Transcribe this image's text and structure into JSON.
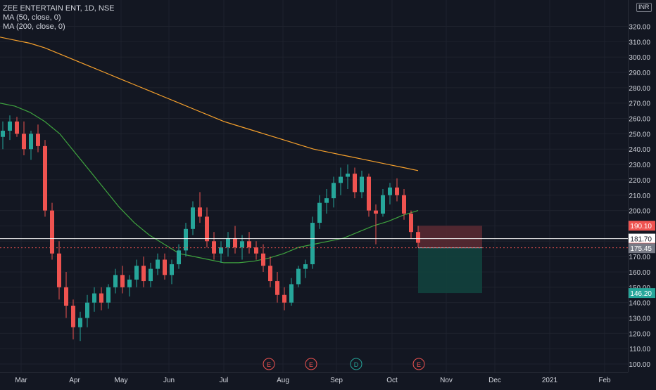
{
  "header": {
    "symbol_line": "ZEE ENTERTAIN ENT, 1D, NSE",
    "ma50_line": "MA (50, close, 0)",
    "ma200_line": "MA (200, close, 0)",
    "currency": "INR"
  },
  "colors": {
    "background": "#131722",
    "grid": "#1e222d",
    "up": "#26a69a",
    "down": "#ef5350",
    "ma50": "#3fa43f",
    "ma200": "#f7a12c",
    "axis_text": "#d1d4dc",
    "stop_zone": "#5c2a33",
    "target_zone": "#12413d"
  },
  "chart_data": {
    "type": "candlestick",
    "symbol": "ZEE ENTERTAIN ENT",
    "interval": "1D",
    "exchange": "NSE",
    "y_ticks": [
      100,
      110,
      120,
      130,
      140,
      150,
      160,
      170,
      180,
      190,
      200,
      210,
      220,
      230,
      240,
      250,
      260,
      270,
      280,
      290,
      300,
      310,
      320
    ],
    "y_tick_labels": [
      "100.00",
      "110.00",
      "120.00",
      "130.00",
      "140.00",
      "150.00",
      "160.00",
      "170.00",
      "180.00",
      "190.00",
      "200.00",
      "210.00",
      "220.00",
      "230.00",
      "240.00",
      "250.00",
      "260.00",
      "270.00",
      "280.00",
      "290.00",
      "300.00",
      "310.00",
      "320.00"
    ],
    "x_labels": [
      "Mar",
      "Apr",
      "May",
      "Jun",
      "Jul",
      "Aug",
      "Sep",
      "Oct",
      "Nov",
      "Dec",
      "2021",
      "Feb"
    ],
    "ohlc_points": [
      {
        "o": 248,
        "h": 258,
        "l": 240,
        "c": 252
      },
      {
        "o": 252,
        "h": 262,
        "l": 246,
        "c": 258
      },
      {
        "o": 258,
        "h": 261,
        "l": 248,
        "c": 250
      },
      {
        "o": 250,
        "h": 258,
        "l": 236,
        "c": 240
      },
      {
        "o": 240,
        "h": 252,
        "l": 233,
        "c": 250
      },
      {
        "o": 250,
        "h": 256,
        "l": 238,
        "c": 242
      },
      {
        "o": 242,
        "h": 246,
        "l": 196,
        "c": 200
      },
      {
        "o": 200,
        "h": 205,
        "l": 168,
        "c": 172
      },
      {
        "o": 172,
        "h": 180,
        "l": 142,
        "c": 150
      },
      {
        "o": 150,
        "h": 160,
        "l": 130,
        "c": 138
      },
      {
        "o": 138,
        "h": 142,
        "l": 116,
        "c": 124
      },
      {
        "o": 124,
        "h": 134,
        "l": 115,
        "c": 130
      },
      {
        "o": 130,
        "h": 145,
        "l": 124,
        "c": 140
      },
      {
        "o": 140,
        "h": 150,
        "l": 134,
        "c": 146
      },
      {
        "o": 146,
        "h": 150,
        "l": 135,
        "c": 140
      },
      {
        "o": 140,
        "h": 152,
        "l": 136,
        "c": 150
      },
      {
        "o": 150,
        "h": 162,
        "l": 146,
        "c": 158
      },
      {
        "o": 158,
        "h": 164,
        "l": 146,
        "c": 150
      },
      {
        "o": 150,
        "h": 158,
        "l": 144,
        "c": 155
      },
      {
        "o": 155,
        "h": 168,
        "l": 150,
        "c": 164
      },
      {
        "o": 164,
        "h": 170,
        "l": 150,
        "c": 154
      },
      {
        "o": 154,
        "h": 166,
        "l": 150,
        "c": 162
      },
      {
        "o": 162,
        "h": 172,
        "l": 158,
        "c": 168
      },
      {
        "o": 168,
        "h": 172,
        "l": 155,
        "c": 158
      },
      {
        "o": 158,
        "h": 168,
        "l": 152,
        "c": 165
      },
      {
        "o": 165,
        "h": 178,
        "l": 162,
        "c": 174
      },
      {
        "o": 174,
        "h": 192,
        "l": 170,
        "c": 188
      },
      {
        "o": 188,
        "h": 206,
        "l": 184,
        "c": 202
      },
      {
        "o": 202,
        "h": 212,
        "l": 192,
        "c": 196
      },
      {
        "o": 196,
        "h": 202,
        "l": 176,
        "c": 180
      },
      {
        "o": 180,
        "h": 186,
        "l": 168,
        "c": 172
      },
      {
        "o": 172,
        "h": 180,
        "l": 166,
        "c": 176
      },
      {
        "o": 176,
        "h": 186,
        "l": 170,
        "c": 182
      },
      {
        "o": 182,
        "h": 190,
        "l": 172,
        "c": 176
      },
      {
        "o": 176,
        "h": 184,
        "l": 168,
        "c": 180
      },
      {
        "o": 180,
        "h": 186,
        "l": 172,
        "c": 176
      },
      {
        "o": 176,
        "h": 180,
        "l": 168,
        "c": 172
      },
      {
        "o": 172,
        "h": 178,
        "l": 160,
        "c": 164
      },
      {
        "o": 164,
        "h": 170,
        "l": 150,
        "c": 154
      },
      {
        "o": 154,
        "h": 160,
        "l": 140,
        "c": 145
      },
      {
        "o": 145,
        "h": 150,
        "l": 135,
        "c": 140
      },
      {
        "o": 140,
        "h": 156,
        "l": 138,
        "c": 152
      },
      {
        "o": 152,
        "h": 164,
        "l": 150,
        "c": 162
      },
      {
        "o": 162,
        "h": 168,
        "l": 156,
        "c": 165
      },
      {
        "o": 165,
        "h": 196,
        "l": 162,
        "c": 192
      },
      {
        "o": 192,
        "h": 210,
        "l": 188,
        "c": 205
      },
      {
        "o": 205,
        "h": 214,
        "l": 198,
        "c": 208
      },
      {
        "o": 208,
        "h": 222,
        "l": 202,
        "c": 218
      },
      {
        "o": 218,
        "h": 228,
        "l": 210,
        "c": 222
      },
      {
        "o": 222,
        "h": 230,
        "l": 214,
        "c": 224
      },
      {
        "o": 224,
        "h": 228,
        "l": 208,
        "c": 212
      },
      {
        "o": 212,
        "h": 226,
        "l": 208,
        "c": 222
      },
      {
        "o": 222,
        "h": 224,
        "l": 196,
        "c": 200
      },
      {
        "o": 200,
        "h": 204,
        "l": 178,
        "c": 198
      },
      {
        "o": 198,
        "h": 214,
        "l": 196,
        "c": 210
      },
      {
        "o": 210,
        "h": 218,
        "l": 204,
        "c": 215
      },
      {
        "o": 215,
        "h": 221,
        "l": 206,
        "c": 210
      },
      {
        "o": 210,
        "h": 214,
        "l": 194,
        "c": 198
      },
      {
        "o": 198,
        "h": 200,
        "l": 182,
        "c": 186
      },
      {
        "o": 186,
        "h": 190,
        "l": 176,
        "c": 179
      }
    ],
    "ma50": [
      270,
      268,
      264,
      258,
      250,
      238,
      226,
      214,
      202,
      192,
      184,
      178,
      172,
      170,
      168,
      166,
      166,
      167,
      169,
      172,
      176,
      178,
      180,
      182,
      186,
      190,
      193,
      197,
      200
    ],
    "ma200": [
      313,
      311,
      309,
      306,
      302,
      298,
      294,
      290,
      286,
      282,
      278,
      274,
      270,
      266,
      262,
      258,
      255,
      252,
      249,
      246,
      243,
      240,
      238,
      236,
      234,
      232,
      230,
      228,
      226
    ],
    "price_labels": [
      {
        "text": "190.10",
        "value": 190.1,
        "color": "#ef5350"
      },
      {
        "text": "181.70",
        "value": 181.7,
        "color": "#ffffff"
      },
      {
        "text": "175.70",
        "value": 175.7,
        "color": "#ef5350"
      },
      {
        "text": "175.45",
        "value": 175.45,
        "color": "#787b86"
      },
      {
        "text": "146.20",
        "value": 146.2,
        "color": "#26a69a"
      }
    ],
    "horizontal_line": 181.7,
    "entry": 175.7,
    "stop": 190.1,
    "target": 146.2,
    "events": [
      {
        "label": "E",
        "type": "earnings"
      },
      {
        "label": "E",
        "type": "earnings"
      },
      {
        "label": "D",
        "type": "dividend"
      },
      {
        "label": "E",
        "type": "earnings"
      }
    ]
  }
}
